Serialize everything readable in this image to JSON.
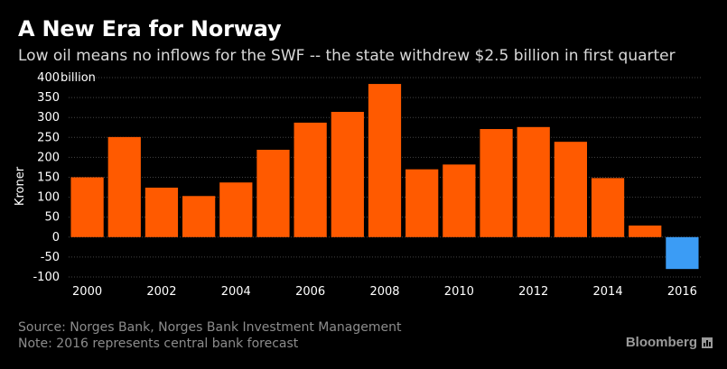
{
  "title": "A New Era for Norway",
  "subtitle": "Low oil means no inflows for the SWF -- the state withdrew $2.5 billion in first quarter",
  "footer": {
    "source": "Source: Norges Bank, Norges Bank Investment Management",
    "note": "Note: 2016 represents central bank forecast"
  },
  "brand": {
    "name": "Bloomberg",
    "icon": "bloomberg-chart-icon"
  },
  "colors": {
    "background": "#000000",
    "bar": "#ff5a00",
    "forecast_bar": "#3b9cf5",
    "grid": "#444444",
    "axis_text": "#ffffff"
  },
  "chart_data": {
    "type": "bar",
    "title": "A New Era for Norway",
    "subtitle": "Low oil means no inflows for the SWF -- the state withdrew $2.5 billion in first quarter",
    "xlabel": "",
    "ylabel": "Kroner",
    "y_unit_label": "billion",
    "ylim": [
      -100,
      400
    ],
    "yticks": [
      -100,
      -50,
      0,
      50,
      100,
      150,
      200,
      250,
      300,
      350,
      400
    ],
    "grid": true,
    "categories": [
      "2000",
      "2001",
      "2002",
      "2003",
      "2004",
      "2005",
      "2006",
      "2007",
      "2008",
      "2009",
      "2010",
      "2011",
      "2012",
      "2013",
      "2014",
      "2015",
      "2016"
    ],
    "xtick_labels": [
      "2000",
      "2002",
      "2004",
      "2006",
      "2008",
      "2010",
      "2012",
      "2014",
      "2016"
    ],
    "values": [
      150,
      251,
      124,
      103,
      137,
      219,
      287,
      314,
      384,
      170,
      182,
      271,
      276,
      239,
      148,
      29,
      -80
    ],
    "forecast_categories": [
      "2016"
    ]
  }
}
